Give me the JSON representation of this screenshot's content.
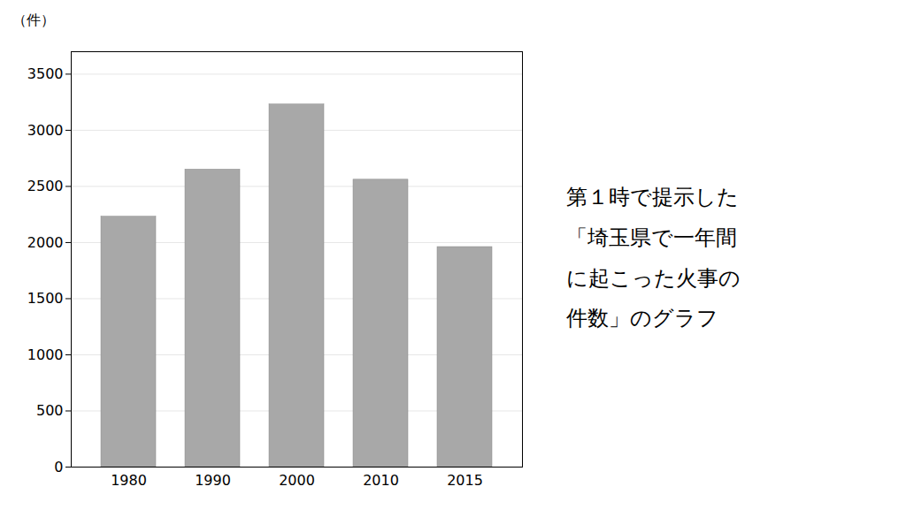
{
  "chart_data": {
    "type": "bar",
    "categories": [
      "1980",
      "1990",
      "2000",
      "2010",
      "2015"
    ],
    "values": [
      2230,
      2650,
      3230,
      2560,
      1960
    ],
    "color": "#a8a8a8",
    "ylabel": "（件）",
    "ylim": [
      0,
      3700
    ],
    "yticks": [
      0,
      500,
      1000,
      1500,
      2000,
      2500,
      3000,
      3500
    ],
    "grid": true,
    "annotations": [
      "第１時で提示した",
      "「埼玉県で一年間",
      "に起こった火事の",
      "件数」のグラフ"
    ]
  }
}
